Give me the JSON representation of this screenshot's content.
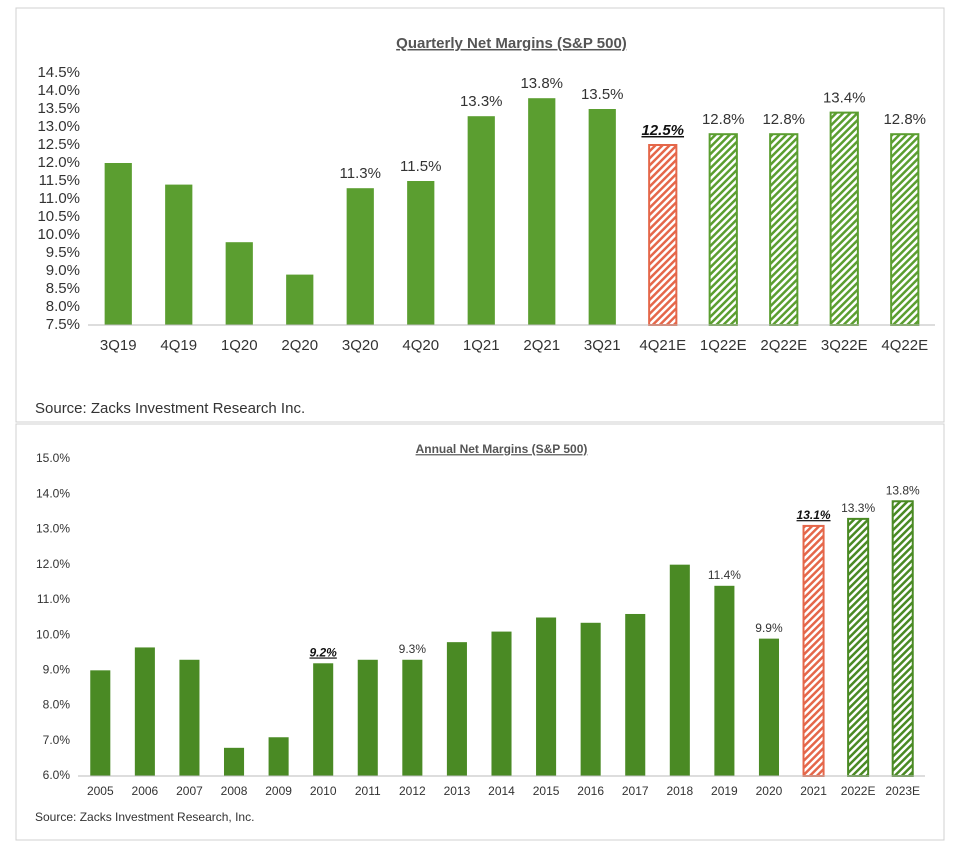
{
  "chart_data": [
    {
      "type": "bar",
      "title": "Quarterly Net Margins (S&P 500)",
      "source": "Source: Zacks Investment Research Inc.",
      "categories": [
        "3Q19",
        "4Q19",
        "1Q20",
        "2Q20",
        "3Q20",
        "4Q20",
        "1Q21",
        "2Q21",
        "3Q21",
        "4Q21E",
        "1Q22E",
        "2Q22E",
        "3Q22E",
        "4Q22E"
      ],
      "values": [
        12.0,
        11.4,
        9.8,
        8.9,
        11.3,
        11.5,
        13.3,
        13.8,
        13.5,
        12.5,
        12.8,
        12.8,
        13.4,
        12.8
      ],
      "value_labels": [
        null,
        null,
        null,
        null,
        "11.3%",
        "11.5%",
        "13.3%",
        "13.8%",
        "13.5%",
        "12.5%",
        "12.8%",
        "12.8%",
        "13.4%",
        "12.8%"
      ],
      "colors": [
        "#5b9e30",
        "#5b9e30",
        "#5b9e30",
        "#5b9e30",
        "#5b9e30",
        "#5b9e30",
        "#5b9e30",
        "#5b9e30",
        "#5b9e30",
        "#e5674a",
        "#5b9e30",
        "#5b9e30",
        "#5b9e30",
        "#5b9e30"
      ],
      "hatched": [
        false,
        false,
        false,
        false,
        false,
        false,
        false,
        false,
        false,
        true,
        true,
        true,
        true,
        true
      ],
      "emphasis": [
        9
      ],
      "ylim": [
        7.5,
        14.5
      ],
      "yticks": [
        {
          "value": 7.5,
          "label": "7.5%"
        },
        {
          "value": 8.0,
          "label": "8.0%"
        },
        {
          "value": 8.5,
          "label": "8.5%"
        },
        {
          "value": 9.0,
          "label": "9.0%"
        },
        {
          "value": 9.5,
          "label": "9.5%"
        },
        {
          "value": 10.0,
          "label": "10.0%"
        },
        {
          "value": 10.5,
          "label": "10.5%"
        },
        {
          "value": 11.0,
          "label": "11.0%"
        },
        {
          "value": 11.5,
          "label": "11.5%"
        },
        {
          "value": 12.0,
          "label": "12.0%"
        },
        {
          "value": 12.5,
          "label": "12.5%"
        },
        {
          "value": 13.0,
          "label": "13.0%"
        },
        {
          "value": 13.5,
          "label": "13.5%"
        },
        {
          "value": 14.0,
          "label": "14.0%"
        },
        {
          "value": 14.5,
          "label": "14.5%"
        }
      ],
      "grid": false
    },
    {
      "type": "bar",
      "title": "Annual Net Margins (S&P 500)",
      "source": "Source: Zacks Investment Research, Inc.",
      "categories": [
        "2005",
        "2006",
        "2007",
        "2008",
        "2009",
        "2010",
        "2011",
        "2012",
        "2013",
        "2014",
        "2015",
        "2016",
        "2017",
        "2018",
        "2019",
        "2020",
        "2021",
        "2022E",
        "2023E"
      ],
      "values": [
        9.0,
        9.65,
        9.3,
        6.8,
        7.1,
        9.2,
        9.3,
        9.3,
        9.8,
        10.1,
        10.5,
        10.35,
        10.6,
        12.0,
        11.4,
        9.9,
        13.1,
        13.3,
        13.8
      ],
      "value_labels": [
        null,
        null,
        null,
        null,
        null,
        "9.2%",
        null,
        "9.3%",
        null,
        null,
        null,
        null,
        null,
        null,
        "11.4%",
        "9.9%",
        "13.1%",
        "13.3%",
        "13.8%"
      ],
      "colors": [
        "#4a8a24",
        "#4a8a24",
        "#4a8a24",
        "#4a8a24",
        "#4a8a24",
        "#4a8a24",
        "#4a8a24",
        "#4a8a24",
        "#4a8a24",
        "#4a8a24",
        "#4a8a24",
        "#4a8a24",
        "#4a8a24",
        "#4a8a24",
        "#4a8a24",
        "#4a8a24",
        "#e5674a",
        "#4a8a24",
        "#4a8a24"
      ],
      "hatched": [
        false,
        false,
        false,
        false,
        false,
        false,
        false,
        false,
        false,
        false,
        false,
        false,
        false,
        false,
        false,
        false,
        true,
        true,
        true
      ],
      "emphasis": [
        5,
        16
      ],
      "ylim": [
        6.0,
        15.0
      ],
      "yticks": [
        {
          "value": 6.0,
          "label": "6.0%"
        },
        {
          "value": 7.0,
          "label": "7.0%"
        },
        {
          "value": 8.0,
          "label": "8.0%"
        },
        {
          "value": 9.0,
          "label": "9.0%"
        },
        {
          "value": 10.0,
          "label": "10.0%"
        },
        {
          "value": 11.0,
          "label": "11.0%"
        },
        {
          "value": 12.0,
          "label": "12.0%"
        },
        {
          "value": 13.0,
          "label": "13.0%"
        },
        {
          "value": 14.0,
          "label": "14.0%"
        },
        {
          "value": 15.0,
          "label": "15.0%"
        }
      ],
      "grid": false
    }
  ]
}
